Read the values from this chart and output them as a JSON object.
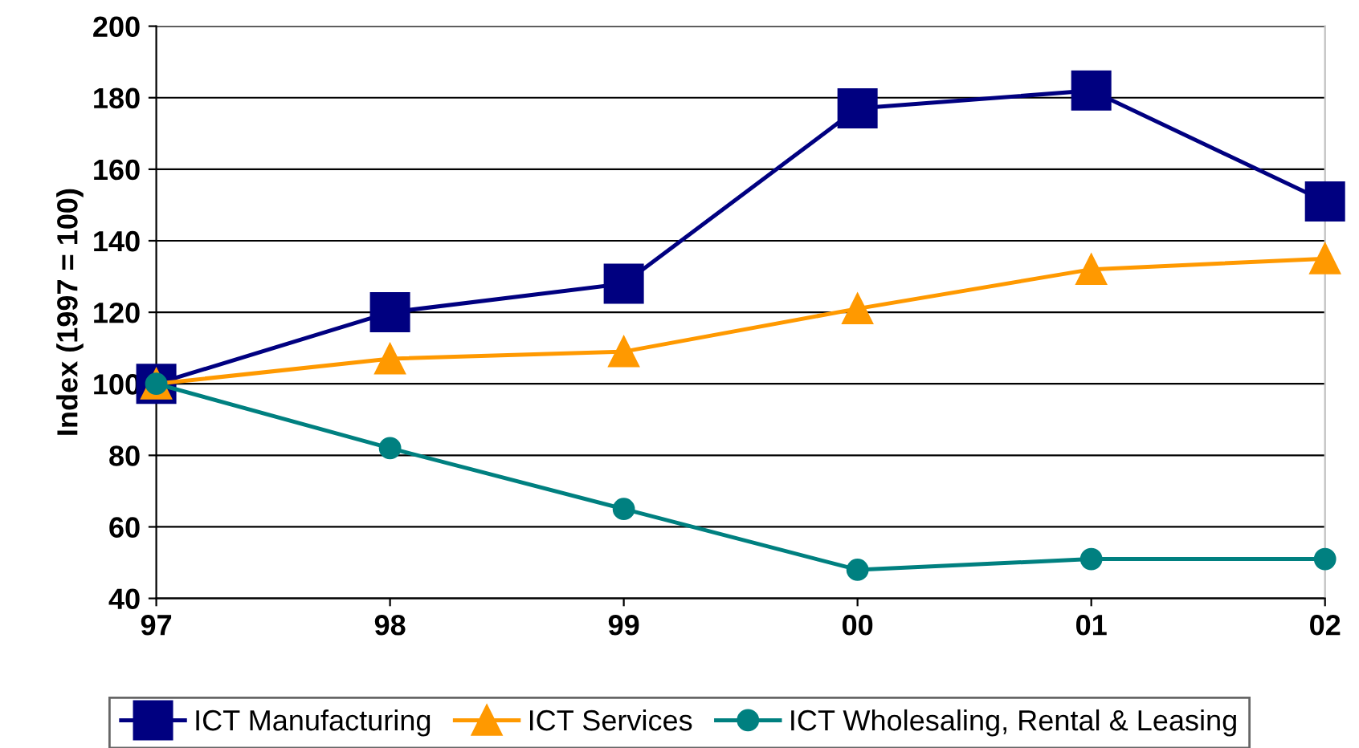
{
  "chart_data": {
    "type": "line",
    "ylabel": "Index (1997 = 100)",
    "categories": [
      "97",
      "98",
      "99",
      "00",
      "01",
      "02"
    ],
    "series": [
      {
        "name": "ICT Manufacturing",
        "color": "#000080",
        "marker": "square",
        "values": [
          100,
          120,
          128,
          177,
          182,
          151
        ]
      },
      {
        "name": "ICT Services",
        "color": "#ff9900",
        "marker": "triangle",
        "values": [
          100,
          107,
          109,
          121,
          132,
          135
        ]
      },
      {
        "name": "ICT Wholesaling, Rental & Leasing",
        "color": "#008080",
        "marker": "circle",
        "values": [
          100,
          82,
          65,
          48,
          51,
          51
        ]
      }
    ],
    "ylim": [
      40,
      200
    ],
    "yticks": [
      40,
      60,
      80,
      100,
      120,
      140,
      160,
      180,
      200
    ],
    "grid": "y",
    "legend": "bottom",
    "line_style": "solid"
  }
}
